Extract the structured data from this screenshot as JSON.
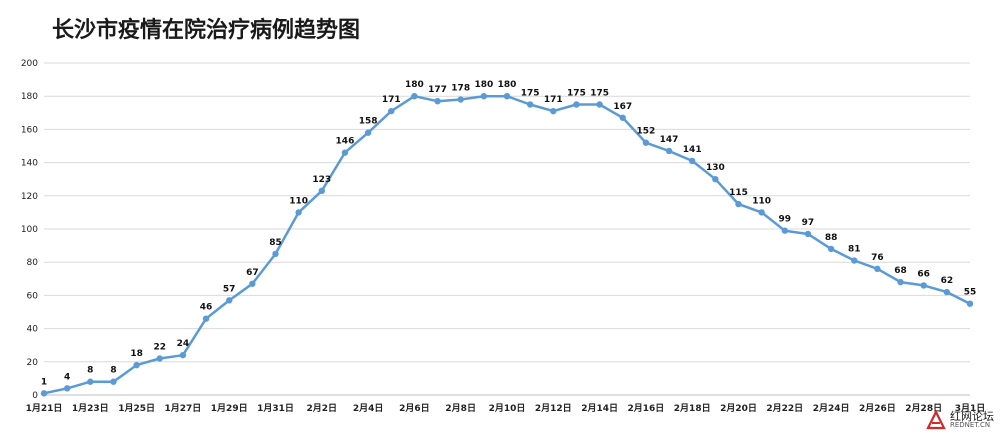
{
  "chart_data": {
    "type": "line",
    "title": "长沙市疫情在院治疗病例趋势图",
    "xlabel": "",
    "ylabel": "",
    "ylim": [
      0,
      200
    ],
    "yticks": [
      0,
      20,
      40,
      60,
      80,
      100,
      120,
      140,
      160,
      180,
      200
    ],
    "grid": true,
    "legend": "none",
    "color": "#5b9bd5",
    "x_tick_labels": [
      "1月21日",
      "1月23日",
      "1月25日",
      "1月27日",
      "1月29日",
      "1月31日",
      "2月2日",
      "2月4日",
      "2月6日",
      "2月8日",
      "2月10日",
      "2月12日",
      "2月14日",
      "2月16日",
      "2月18日",
      "2月20日",
      "2月22日",
      "2月24日",
      "2月26日",
      "2月28日",
      "3月1日"
    ],
    "x_tick_positions": [
      0,
      2,
      4,
      6,
      8,
      10,
      12,
      14,
      16,
      18,
      20,
      22,
      24,
      26,
      28,
      30,
      32,
      34,
      36,
      38,
      40
    ],
    "series": [
      {
        "values": [
          1,
          4,
          8,
          8,
          18,
          22,
          24,
          46,
          57,
          67,
          85,
          110,
          123,
          146,
          158,
          171,
          180,
          177,
          178,
          180,
          180,
          175,
          171,
          175,
          175,
          167,
          152,
          147,
          141,
          130,
          115,
          110,
          99,
          97,
          88,
          81,
          76,
          68,
          66,
          62,
          55
        ]
      }
    ]
  },
  "watermark": {
    "name": "红网论坛",
    "url": "REDNET.CN",
    "icon": "rednet-logo-icon"
  }
}
